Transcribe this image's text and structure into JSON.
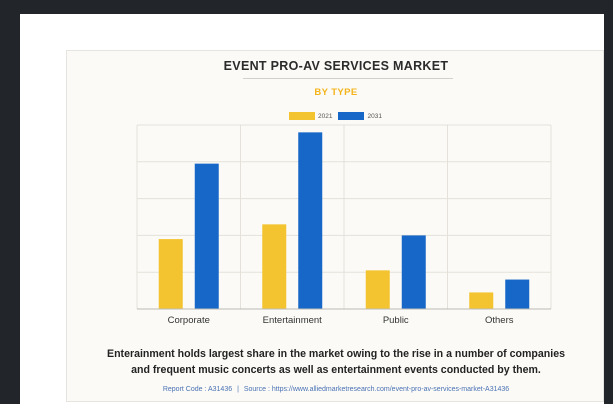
{
  "colors": {
    "page_bg": "#22262b",
    "card_bg": "#fbfaf6",
    "series_2021": "#f4c430",
    "series_2031": "#1667c8",
    "subtitle": "#f4b41a",
    "footer_link": "#4a72b5"
  },
  "chart_data": {
    "type": "bar",
    "title": "EVENT PRO-AV SERVICES MARKET",
    "subtitle": "BY TYPE",
    "categories": [
      "Corporate",
      "Entertainment",
      "Public",
      "Others"
    ],
    "series": [
      {
        "name": "2021",
        "color": "#f4c430",
        "values": [
          38,
          46,
          21,
          9
        ]
      },
      {
        "name": "2031",
        "color": "#1667c8",
        "values": [
          79,
          96,
          40,
          16
        ]
      }
    ],
    "ylim": [
      0,
      100
    ],
    "y_gridlines": [
      20,
      40,
      60,
      80,
      100
    ],
    "grid": "horizontal",
    "legend_position": "top-center",
    "xlabel": "",
    "ylabel": ""
  },
  "caption": {
    "line1": "Enterainment holds largest share in the market owing to the rise in a number of companies",
    "line2": "and frequent music concerts as well as entertainment events conducted by them."
  },
  "footer": {
    "report_code": "Report Code : A31436",
    "separator": "|",
    "source": "Source : https://www.alliedmarketresearch.com/event-pro-av-services-market-A31436"
  }
}
